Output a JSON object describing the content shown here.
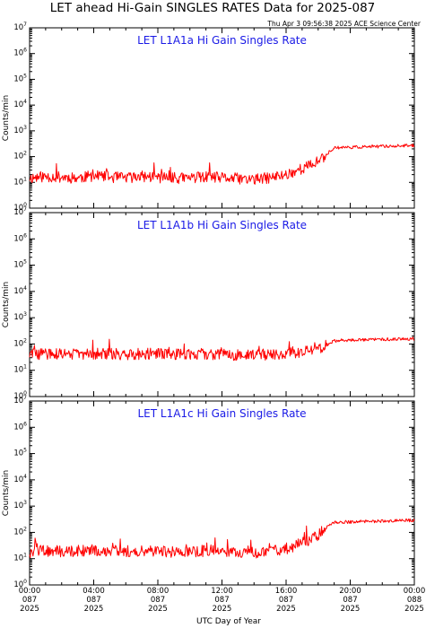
{
  "figure": {
    "title": "LET ahead Hi-Gain SINGLES RATES Data for 2025-087",
    "timestamp": "Thu Apr  3 09:56:38 2025 ACE Science Center",
    "xlabel": "UTC Day of Year",
    "ylabel": "Counts/min"
  },
  "chart_data": [
    {
      "type": "line",
      "title": "LET L1A1a Hi Gain Singles Rate",
      "ylabel": "Counts/min",
      "yscale": "log",
      "ylim": [
        1,
        10000000
      ],
      "xlim": [
        0,
        24
      ],
      "x_unit": "hours UTC on day 087",
      "grid": false,
      "series": [
        {
          "color": "#ff0000",
          "x": [
            0,
            1,
            2,
            3,
            4,
            5,
            6,
            7,
            8,
            9,
            10,
            11,
            12,
            13,
            14,
            15,
            16,
            17,
            17.5,
            18,
            18.5,
            19,
            19.5,
            20,
            21,
            22,
            23,
            24
          ],
          "y": [
            15,
            17,
            16,
            15,
            18,
            16,
            15,
            17,
            16,
            14,
            15,
            16,
            15,
            14,
            13,
            15,
            20,
            35,
            45,
            65,
            120,
            220,
            230,
            230,
            240,
            250,
            260,
            270
          ]
        }
      ]
    },
    {
      "type": "line",
      "title": "LET L1A1b Hi Gain Singles Rate",
      "ylabel": "Counts/min",
      "yscale": "log",
      "ylim": [
        1,
        10000000
      ],
      "xlim": [
        0,
        24
      ],
      "x_unit": "hours UTC on day 087",
      "grid": false,
      "series": [
        {
          "color": "#ff0000",
          "x": [
            0,
            1,
            2,
            3,
            4,
            5,
            6,
            7,
            8,
            9,
            10,
            11,
            12,
            13,
            14,
            15,
            16,
            17,
            17.5,
            18,
            18.5,
            19,
            19.5,
            20,
            21,
            22,
            23,
            24
          ],
          "y": [
            40,
            42,
            41,
            42,
            43,
            42,
            41,
            43,
            42,
            41,
            40,
            41,
            40,
            39,
            38,
            40,
            42,
            48,
            55,
            65,
            90,
            130,
            140,
            140,
            145,
            150,
            155,
            160
          ]
        }
      ]
    },
    {
      "type": "line",
      "title": "LET L1A1c Hi Gain Singles Rate",
      "ylabel": "Counts/min",
      "yscale": "log",
      "ylim": [
        1,
        10000000
      ],
      "xlim": [
        0,
        24
      ],
      "x_unit": "hours UTC on day 087",
      "grid": false,
      "series": [
        {
          "color": "#ff0000",
          "x": [
            0,
            1,
            2,
            3,
            4,
            5,
            6,
            7,
            8,
            9,
            10,
            11,
            12,
            13,
            14,
            15,
            16,
            17,
            17.5,
            18,
            18.5,
            19,
            19.5,
            20,
            21,
            22,
            23,
            24
          ],
          "y": [
            18,
            20,
            19,
            20,
            21,
            20,
            19,
            21,
            20,
            18,
            19,
            20,
            19,
            18,
            17,
            19,
            24,
            40,
            55,
            80,
            150,
            240,
            250,
            250,
            260,
            270,
            280,
            290
          ]
        }
      ]
    }
  ],
  "y_tick_labels": [
    {
      "base": "10",
      "exp": "0"
    },
    {
      "base": "10",
      "exp": "1"
    },
    {
      "base": "10",
      "exp": "2"
    },
    {
      "base": "10",
      "exp": "3"
    },
    {
      "base": "10",
      "exp": "4"
    },
    {
      "base": "10",
      "exp": "5"
    },
    {
      "base": "10",
      "exp": "6"
    },
    {
      "base": "10",
      "exp": "7"
    }
  ],
  "x_ticks": [
    {
      "x": 0,
      "time": "00:00",
      "day": "087",
      "year": "2025"
    },
    {
      "x": 4,
      "time": "04:00",
      "day": "087",
      "year": "2025"
    },
    {
      "x": 8,
      "time": "08:00",
      "day": "087",
      "year": "2025"
    },
    {
      "x": 12,
      "time": "12:00",
      "day": "087",
      "year": "2025"
    },
    {
      "x": 16,
      "time": "16:00",
      "day": "087",
      "year": "2025"
    },
    {
      "x": 20,
      "time": "20:00",
      "day": "087",
      "year": "2025"
    },
    {
      "x": 24,
      "time": "00:00",
      "day": "088",
      "year": "2025"
    }
  ]
}
